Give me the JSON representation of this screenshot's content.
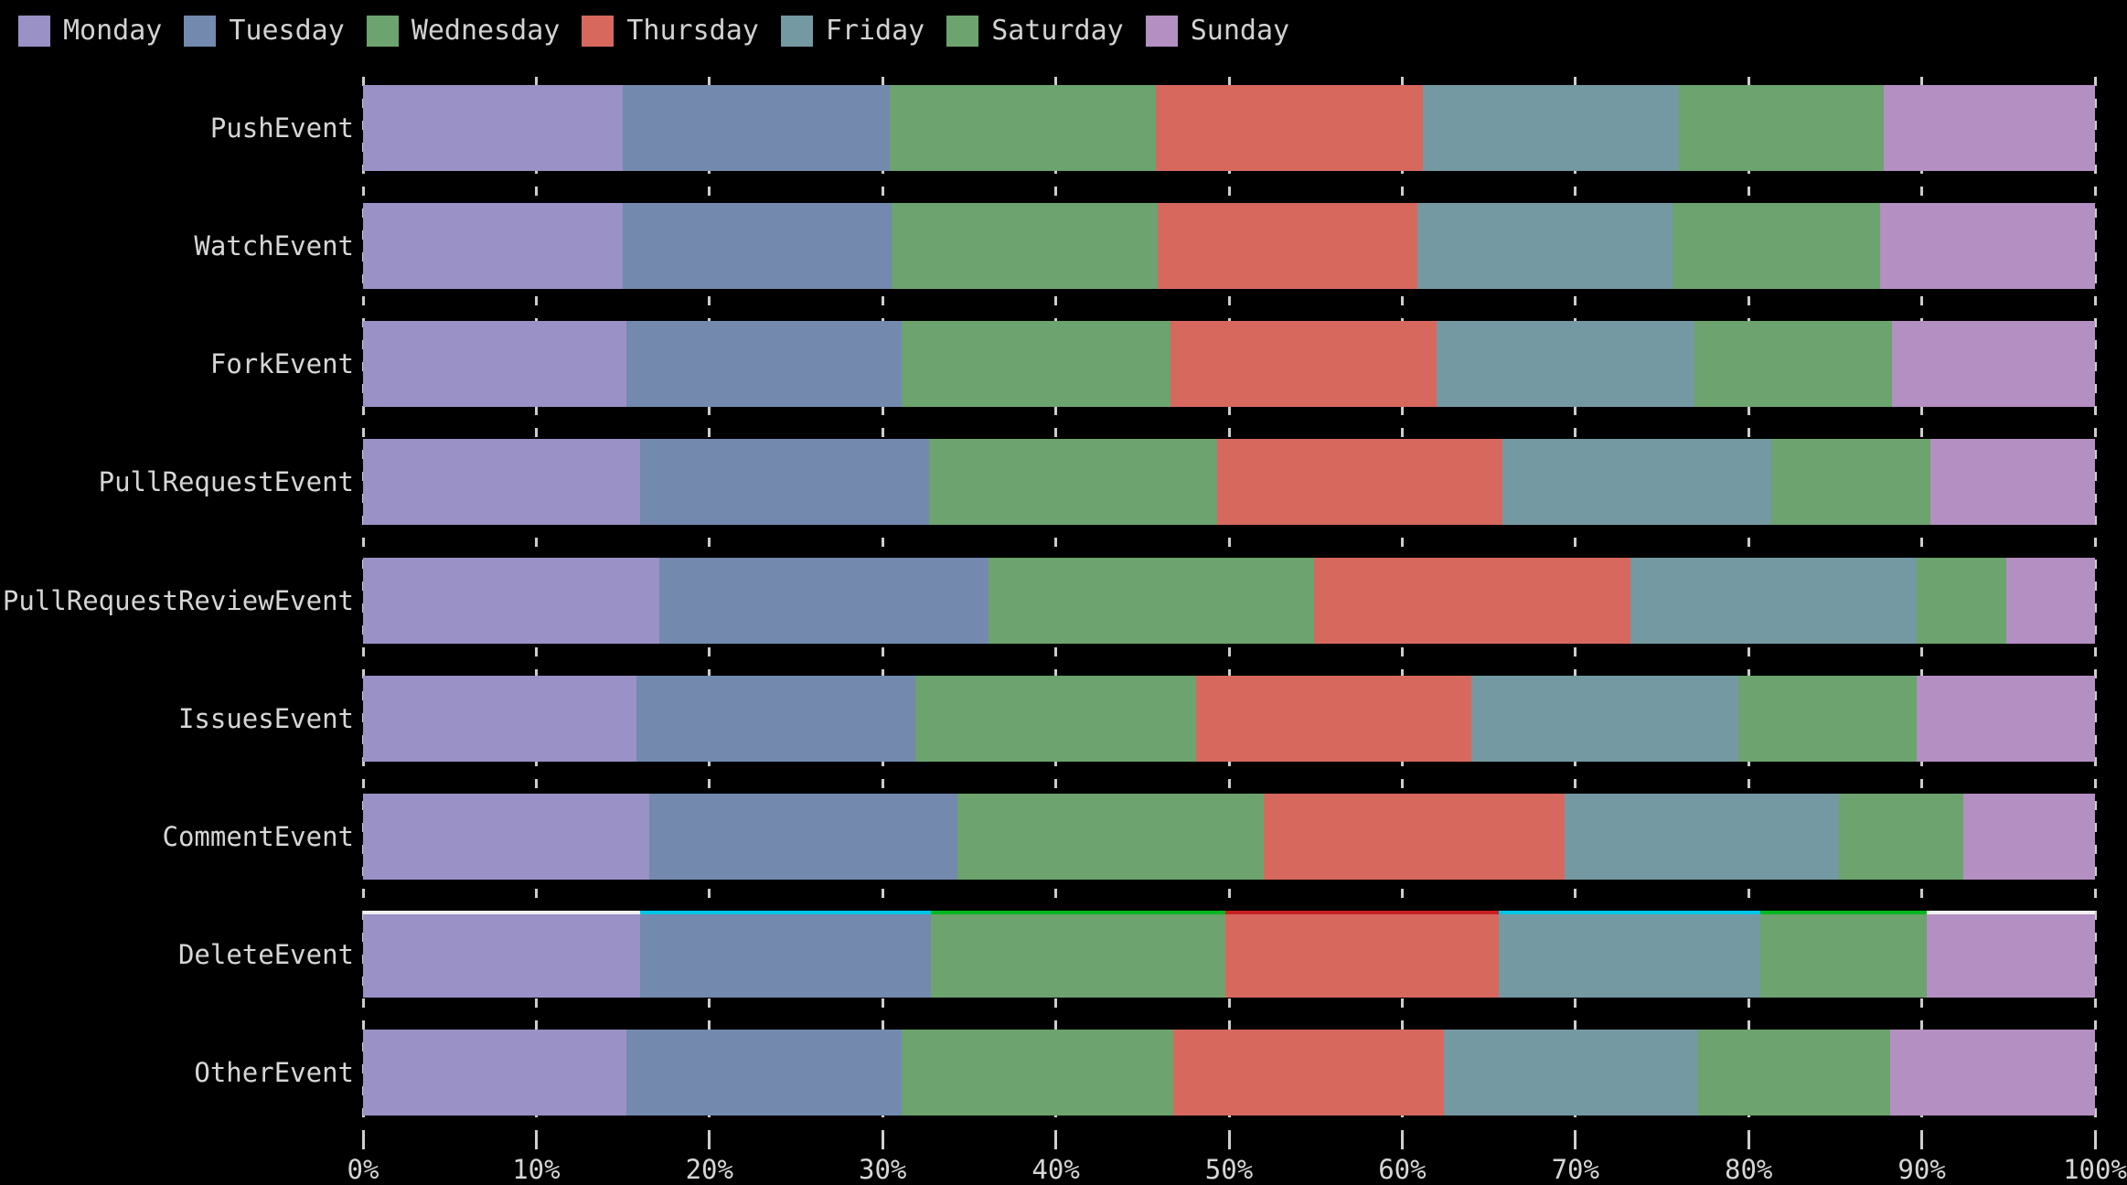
{
  "chart_data": {
    "type": "bar",
    "orientation": "horizontal",
    "stacked": true,
    "unit": "%",
    "background_color": "#000000",
    "text_color": "#d6d6d6",
    "grid": "vertical-dashed",
    "legend_position": "top-left",
    "xlim": [
      0,
      100
    ],
    "x_ticks": [
      "0%",
      "10%",
      "20%",
      "30%",
      "40%",
      "50%",
      "60%",
      "70%",
      "80%",
      "90%",
      "100%"
    ],
    "categories": [
      "PushEvent",
      "WatchEvent",
      "ForkEvent",
      "PullRequestEvent",
      "PullRequestReviewEvent",
      "IssuesEvent",
      "CommentEvent",
      "DeleteEvent",
      "OtherEvent"
    ],
    "series": [
      {
        "name": "Monday",
        "color": "#9a91c6",
        "values": [
          15.0,
          15.0,
          15.2,
          16.0,
          17.1,
          15.8,
          16.5,
          16.0,
          15.2
        ]
      },
      {
        "name": "Tuesday",
        "color": "#7389ae",
        "values": [
          15.4,
          15.5,
          15.9,
          16.7,
          19.0,
          16.1,
          17.8,
          16.8,
          15.9
        ]
      },
      {
        "name": "Wednesday",
        "color": "#6ca36e",
        "values": [
          15.4,
          15.4,
          15.5,
          16.6,
          18.8,
          16.2,
          17.7,
          17.0,
          15.7
        ]
      },
      {
        "name": "Thursday",
        "color": "#d7685e",
        "values": [
          15.4,
          15.0,
          15.4,
          16.5,
          18.3,
          15.9,
          17.4,
          15.8,
          15.6
        ]
      },
      {
        "name": "Friday",
        "color": "#7499a2",
        "values": [
          14.8,
          14.7,
          14.9,
          15.5,
          16.5,
          15.4,
          15.8,
          15.1,
          14.7
        ]
      },
      {
        "name": "Saturday",
        "color": "#6ca36e",
        "values": [
          11.8,
          12.0,
          11.4,
          9.2,
          5.2,
          10.3,
          7.2,
          9.6,
          11.1
        ]
      },
      {
        "name": "Sunday",
        "color": "#b48fc2",
        "values": [
          12.2,
          12.4,
          11.7,
          9.5,
          5.1,
          10.3,
          7.6,
          9.7,
          11.8
        ]
      }
    ],
    "delete_event_top_edge_colors": [
      "#f0f0f0",
      "#00c6e8",
      "#00b81e",
      "#c82020",
      "#00c6e8",
      "#00b81e",
      "#f0f0f0"
    ]
  }
}
